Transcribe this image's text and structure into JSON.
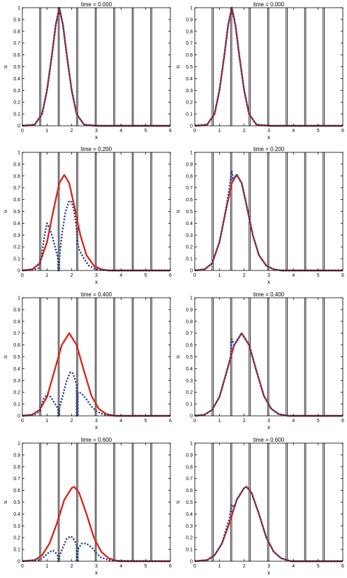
{
  "colors": {
    "exact": "#d42a1e",
    "approx": "#2a3f8c",
    "frame": "#000000"
  },
  "interfaces": [
    0.7,
    0.75,
    1.45,
    1.5,
    2.2,
    2.25,
    2.95,
    3.0,
    3.7,
    3.75,
    4.45,
    4.5,
    5.2,
    5.25
  ],
  "chart_data": [
    {
      "type": "line",
      "title": "time = 0.000",
      "xlabel": "x",
      "ylabel": "u",
      "xlim": [
        0,
        6
      ],
      "ylim": [
        0,
        1
      ],
      "xticks": [
        "0",
        "1",
        "2",
        "3",
        "4",
        "5",
        "6"
      ],
      "yticks": [
        "0",
        "0.1",
        "0.2",
        "0.3",
        "0.4",
        "0.5",
        "0.6",
        "0.7",
        "0.8",
        "0.9",
        "1"
      ],
      "series": [
        {
          "style": "solid",
          "x": [
            0,
            0.5,
            0.8,
            1.0,
            1.2,
            1.35,
            1.5,
            1.65,
            1.8,
            2.0,
            2.2,
            2.5,
            3.0,
            6.0
          ],
          "y": [
            0,
            0.01,
            0.1,
            0.3,
            0.6,
            0.85,
            1.0,
            0.85,
            0.6,
            0.3,
            0.1,
            0.01,
            0,
            0
          ]
        },
        {
          "style": "dotted",
          "x": [
            0,
            0.5,
            0.8,
            1.0,
            1.2,
            1.35,
            1.5,
            1.65,
            1.8,
            2.0,
            2.2,
            2.5,
            3.0,
            6.0
          ],
          "y": [
            0,
            0.01,
            0.1,
            0.3,
            0.6,
            0.85,
            1.0,
            0.85,
            0.6,
            0.3,
            0.1,
            0.01,
            0,
            0
          ]
        }
      ]
    },
    {
      "type": "line",
      "title": "time = 0.000",
      "xlabel": "x",
      "ylabel": "u",
      "xlim": [
        0,
        6
      ],
      "ylim": [
        0,
        1
      ],
      "xticks": [
        "0",
        "1",
        "2",
        "3",
        "4",
        "5",
        "6"
      ],
      "yticks": [
        "0",
        "0.1",
        "0.2",
        "0.3",
        "0.4",
        "0.5",
        "0.6",
        "0.7",
        "0.8",
        "0.9",
        "1"
      ],
      "series": [
        {
          "style": "solid",
          "x": [
            0,
            0.5,
            0.8,
            1.0,
            1.2,
            1.35,
            1.5,
            1.65,
            1.8,
            2.0,
            2.2,
            2.5,
            3.0,
            6.0
          ],
          "y": [
            0,
            0.01,
            0.1,
            0.3,
            0.6,
            0.85,
            1.0,
            0.85,
            0.6,
            0.3,
            0.1,
            0.01,
            0,
            0
          ]
        },
        {
          "style": "dotted",
          "x": [
            0,
            0.5,
            0.8,
            1.0,
            1.2,
            1.35,
            1.5,
            1.65,
            1.8,
            2.0,
            2.2,
            2.5,
            3.0,
            6.0
          ],
          "y": [
            0,
            0.01,
            0.1,
            0.3,
            0.6,
            0.85,
            1.0,
            0.85,
            0.6,
            0.3,
            0.1,
            0.01,
            0,
            0
          ]
        }
      ]
    },
    {
      "type": "line",
      "title": "time = 0.200",
      "xlabel": "x",
      "ylabel": "u",
      "xlim": [
        0,
        6
      ],
      "ylim": [
        0,
        1
      ],
      "xticks": [
        "0",
        "1",
        "2",
        "3",
        "4",
        "5",
        "6"
      ],
      "yticks": [
        "0",
        "0.1",
        "0.2",
        "0.3",
        "0.4",
        "0.5",
        "0.6",
        "0.7",
        "0.8",
        "0.9",
        "1"
      ],
      "series": [
        {
          "style": "solid",
          "x": [
            0,
            0.4,
            0.7,
            1.0,
            1.25,
            1.5,
            1.7,
            1.9,
            2.1,
            2.35,
            2.6,
            2.9,
            3.2,
            3.5,
            6.0
          ],
          "y": [
            0,
            0.01,
            0.06,
            0.24,
            0.5,
            0.74,
            0.81,
            0.74,
            0.55,
            0.3,
            0.13,
            0.04,
            0.01,
            0,
            0
          ]
        },
        {
          "style": "dotted",
          "x": [
            0,
            0.4,
            0.65,
            0.8,
            0.9,
            1.0,
            1.1,
            1.2,
            1.3,
            1.4,
            1.45,
            1.45,
            1.5,
            1.5,
            1.6,
            1.75,
            1.9,
            2.0,
            2.1,
            2.2,
            2.25,
            2.3,
            2.5,
            2.7,
            3.0,
            3.5,
            6.0
          ],
          "y": [
            0,
            0.005,
            0.02,
            0.15,
            0.3,
            0.4,
            0.36,
            0.3,
            0.22,
            0.14,
            0.09,
            0.0,
            0.0,
            0.1,
            0.3,
            0.5,
            0.59,
            0.58,
            0.5,
            0.35,
            0.22,
            0.18,
            0.1,
            0.04,
            0.01,
            0,
            0
          ]
        }
      ]
    },
    {
      "type": "line",
      "title": "time = 0.200",
      "xlabel": "x",
      "ylabel": "u",
      "xlim": [
        0,
        6
      ],
      "ylim": [
        0,
        1
      ],
      "xticks": [
        "0",
        "1",
        "2",
        "3",
        "4",
        "5",
        "6"
      ],
      "yticks": [
        "0",
        "0.1",
        "0.2",
        "0.3",
        "0.4",
        "0.5",
        "0.6",
        "0.7",
        "0.8",
        "0.9",
        "1"
      ],
      "series": [
        {
          "style": "solid",
          "x": [
            0,
            0.4,
            0.7,
            1.0,
            1.25,
            1.5,
            1.7,
            1.9,
            2.1,
            2.35,
            2.6,
            2.9,
            3.2,
            3.5,
            6.0
          ],
          "y": [
            0,
            0.01,
            0.06,
            0.24,
            0.5,
            0.74,
            0.81,
            0.74,
            0.55,
            0.3,
            0.13,
            0.04,
            0.01,
            0,
            0
          ]
        },
        {
          "style": "dotted",
          "x": [
            0,
            0.4,
            0.7,
            1.0,
            1.25,
            1.4,
            1.5,
            1.55,
            1.7,
            1.9,
            2.1,
            2.35,
            2.6,
            2.9,
            3.2,
            3.5,
            6.0
          ],
          "y": [
            0,
            0.01,
            0.06,
            0.24,
            0.5,
            0.7,
            0.84,
            0.78,
            0.81,
            0.74,
            0.55,
            0.3,
            0.13,
            0.04,
            0.01,
            0,
            0
          ]
        }
      ]
    },
    {
      "type": "line",
      "title": "time = 0.400",
      "xlabel": "x",
      "ylabel": "u",
      "xlim": [
        0,
        6
      ],
      "ylim": [
        0,
        1
      ],
      "xticks": [
        "0",
        "1",
        "2",
        "3",
        "4",
        "5",
        "6"
      ],
      "yticks": [
        "0",
        "0.1",
        "0.2",
        "0.3",
        "0.4",
        "0.5",
        "0.6",
        "0.7",
        "0.8",
        "0.9",
        "1"
      ],
      "series": [
        {
          "style": "solid",
          "x": [
            0,
            0.4,
            0.7,
            1.0,
            1.3,
            1.6,
            1.9,
            2.2,
            2.5,
            2.8,
            3.1,
            3.4,
            3.8,
            6.0
          ],
          "y": [
            0,
            0.01,
            0.05,
            0.16,
            0.38,
            0.6,
            0.7,
            0.6,
            0.38,
            0.17,
            0.06,
            0.015,
            0,
            0
          ]
        },
        {
          "style": "dotted",
          "x": [
            0,
            0.5,
            0.7,
            0.85,
            1.0,
            1.15,
            1.3,
            1.45,
            1.45,
            1.5,
            1.5,
            1.65,
            1.8,
            1.95,
            2.05,
            2.15,
            2.2,
            2.2,
            2.25,
            2.25,
            2.4,
            2.6,
            2.8,
            3.0,
            3.3,
            3.7,
            6.0
          ],
          "y": [
            0,
            0.01,
            0.04,
            0.14,
            0.18,
            0.16,
            0.11,
            0.06,
            0.0,
            0.0,
            0.06,
            0.18,
            0.3,
            0.37,
            0.36,
            0.3,
            0.26,
            0.0,
            0.0,
            0.2,
            0.19,
            0.14,
            0.08,
            0.04,
            0.01,
            0,
            0
          ]
        }
      ]
    },
    {
      "type": "line",
      "title": "time = 0.400",
      "xlabel": "x",
      "ylabel": "u",
      "xlim": [
        0,
        6
      ],
      "ylim": [
        0,
        1
      ],
      "xticks": [
        "0",
        "1",
        "2",
        "3",
        "4",
        "5",
        "6"
      ],
      "yticks": [
        "0",
        "0.1",
        "0.2",
        "0.3",
        "0.4",
        "0.5",
        "0.6",
        "0.7",
        "0.8",
        "0.9",
        "1"
      ],
      "series": [
        {
          "style": "solid",
          "x": [
            0,
            0.4,
            0.7,
            1.0,
            1.3,
            1.6,
            1.9,
            2.2,
            2.5,
            2.8,
            3.1,
            3.4,
            3.8,
            6.0
          ],
          "y": [
            0,
            0.01,
            0.05,
            0.16,
            0.38,
            0.6,
            0.7,
            0.6,
            0.38,
            0.17,
            0.06,
            0.015,
            0,
            0
          ]
        },
        {
          "style": "dotted",
          "x": [
            0,
            0.4,
            0.7,
            1.0,
            1.3,
            1.45,
            1.5,
            1.6,
            1.9,
            2.2,
            2.5,
            2.8,
            3.1,
            3.4,
            3.8,
            6.0
          ],
          "y": [
            0,
            0.01,
            0.05,
            0.16,
            0.38,
            0.5,
            0.65,
            0.6,
            0.7,
            0.6,
            0.38,
            0.17,
            0.06,
            0.015,
            0,
            0
          ]
        }
      ]
    },
    {
      "type": "line",
      "title": "time = 0.600",
      "xlabel": "x",
      "ylabel": "u",
      "xlim": [
        0,
        6
      ],
      "ylim": [
        0,
        1
      ],
      "xticks": [
        "0",
        "1",
        "2",
        "3",
        "4",
        "5",
        "6"
      ],
      "yticks": [
        "0",
        "0.1",
        "0.2",
        "0.3",
        "0.4",
        "0.5",
        "0.6",
        "0.7",
        "0.8",
        "0.9",
        "1"
      ],
      "series": [
        {
          "style": "solid",
          "x": [
            0,
            0.5,
            0.8,
            1.1,
            1.4,
            1.7,
            2.0,
            2.1,
            2.3,
            2.6,
            2.9,
            3.2,
            3.5,
            3.9,
            6.0
          ],
          "y": [
            0,
            0.01,
            0.05,
            0.15,
            0.32,
            0.52,
            0.62,
            0.63,
            0.58,
            0.4,
            0.2,
            0.08,
            0.025,
            0,
            0
          ]
        },
        {
          "style": "dotted",
          "x": [
            0,
            0.7,
            0.9,
            1.1,
            1.25,
            1.4,
            1.45,
            1.45,
            1.5,
            1.5,
            1.65,
            1.8,
            1.95,
            2.05,
            2.15,
            2.2,
            2.2,
            2.25,
            2.25,
            2.4,
            2.6,
            2.8,
            3.0,
            3.2,
            3.6,
            6.0
          ],
          "y": [
            0,
            0.01,
            0.04,
            0.08,
            0.09,
            0.06,
            0.04,
            0.0,
            0.0,
            0.04,
            0.12,
            0.19,
            0.21,
            0.2,
            0.16,
            0.13,
            0.0,
            0.0,
            0.1,
            0.15,
            0.15,
            0.12,
            0.07,
            0.03,
            0.005,
            0
          ]
        }
      ]
    },
    {
      "type": "line",
      "title": "time = 0.600",
      "xlabel": "x",
      "ylabel": "u",
      "xlim": [
        0,
        6
      ],
      "ylim": [
        0,
        1
      ],
      "xticks": [
        "0",
        "1",
        "2",
        "3",
        "4",
        "5",
        "6"
      ],
      "yticks": [
        "0",
        "0.1",
        "0.2",
        "0.3",
        "0.4",
        "0.5",
        "0.6",
        "0.7",
        "0.8",
        "0.9",
        "1"
      ],
      "series": [
        {
          "style": "solid",
          "x": [
            0,
            0.5,
            0.8,
            1.1,
            1.4,
            1.7,
            2.0,
            2.1,
            2.3,
            2.6,
            2.9,
            3.2,
            3.5,
            3.9,
            6.0
          ],
          "y": [
            0,
            0.01,
            0.05,
            0.15,
            0.32,
            0.52,
            0.62,
            0.63,
            0.58,
            0.4,
            0.2,
            0.08,
            0.025,
            0,
            0
          ]
        },
        {
          "style": "dotted",
          "x": [
            0,
            0.5,
            0.8,
            1.1,
            1.4,
            1.5,
            1.6,
            1.7,
            2.0,
            2.1,
            2.3,
            2.6,
            2.9,
            3.2,
            3.5,
            3.9,
            6.0
          ],
          "y": [
            0,
            0.01,
            0.05,
            0.15,
            0.36,
            0.48,
            0.46,
            0.52,
            0.62,
            0.63,
            0.58,
            0.4,
            0.2,
            0.08,
            0.025,
            0,
            0
          ]
        }
      ]
    }
  ]
}
